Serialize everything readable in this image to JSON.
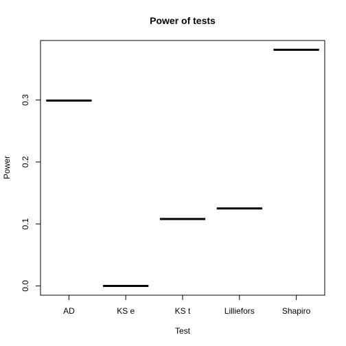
{
  "chart_data": {
    "type": "boxplot",
    "title": "Power of tests",
    "xlabel": "Test",
    "ylabel": "Power",
    "categories": [
      "AD",
      "KS e",
      "KS t",
      "Lilliefors",
      "Shapiro"
    ],
    "values": [
      0.299,
      0.0,
      0.108,
      0.125,
      0.381
    ],
    "y_ticks": [
      "0.0",
      "0.1",
      "0.2",
      "0.3"
    ],
    "ylim": [
      -0.015,
      0.396
    ],
    "grid": false
  }
}
